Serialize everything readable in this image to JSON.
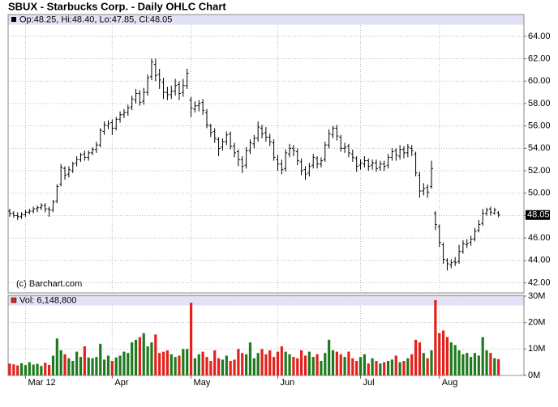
{
  "chart_data": [
    {
      "type": "ohlc",
      "title": "SBUX - Starbucks Corp. - Daily OHLC Chart",
      "header": "Op:48.25, Hi:48.40, Lo:47.85, Cl:48.05",
      "watermark": "(c) Barchart.com",
      "last_label": "48.05",
      "color": "#000000",
      "open": [
        48.4,
        48.2,
        48.0,
        47.9,
        48.1,
        48.3,
        48.4,
        48.6,
        48.7,
        48.9,
        48.6,
        48.5,
        49.3,
        50.8,
        52.2,
        51.7,
        52.0,
        52.7,
        53.0,
        53.5,
        53.2,
        53.6,
        53.9,
        54.3,
        55.5,
        56.0,
        56.3,
        55.8,
        56.6,
        57.0,
        57.2,
        57.7,
        58.3,
        58.9,
        58.2,
        59.0,
        60.4,
        61.5,
        60.6,
        59.9,
        59.0,
        58.8,
        59.1,
        59.7,
        59.0,
        59.6,
        58.3,
        57.5,
        57.8,
        58.1,
        57.2,
        56.0,
        55.5,
        54.8,
        54.1,
        54.6,
        55.3,
        54.2,
        53.7,
        53.0,
        52.5,
        53.8,
        54.4,
        54.9,
        55.8,
        55.4,
        55.0,
        54.5,
        53.0,
        52.6,
        52.2,
        53.5,
        54.0,
        53.7,
        52.8,
        52.1,
        51.8,
        52.5,
        53.1,
        52.6,
        53.0,
        54.3,
        55.2,
        55.8,
        55.0,
        54.0,
        54.2,
        53.5,
        53.1,
        52.5,
        52.6,
        52.9,
        52.5,
        52.7,
        52.3,
        52.6,
        52.5,
        53.2,
        53.8,
        53.3,
        53.9,
        53.6,
        54.0,
        53.5,
        51.6,
        50.2,
        50.5,
        50.6,
        48.2,
        47.0,
        45.4,
        44.0,
        43.6,
        43.9,
        43.9,
        44.8,
        45.4,
        45.6,
        45.9,
        46.7,
        47.3,
        48.2,
        48.6,
        48.2,
        48.25
      ],
      "high": [
        48.6,
        48.4,
        48.3,
        48.3,
        48.5,
        48.6,
        48.8,
        48.9,
        49.1,
        49.1,
        48.8,
        49.4,
        50.8,
        52.6,
        52.4,
        52.4,
        52.8,
        53.3,
        53.6,
        53.8,
        53.8,
        54.1,
        54.6,
        55.8,
        56.4,
        56.5,
        56.6,
        56.8,
        57.3,
        57.5,
        57.9,
        58.7,
        59.3,
        59.2,
        59.4,
        60.6,
        62.0,
        62.0,
        61.1,
        60.3,
        59.5,
        59.6,
        60.2,
        60.0,
        60.2,
        61.1,
        58.6,
        58.2,
        58.3,
        58.4,
        57.5,
        56.2,
        55.8,
        55.0,
        54.9,
        55.5,
        55.5,
        54.5,
        53.9,
        53.3,
        54.1,
        54.8,
        55.2,
        56.4,
        56.1,
        55.9,
        55.3,
        54.8,
        53.4,
        53.0,
        53.9,
        54.4,
        54.3,
        54.0,
        53.1,
        52.4,
        52.7,
        53.5,
        53.3,
        53.2,
        54.6,
        55.7,
        56.0,
        56.1,
        55.2,
        54.5,
        54.4,
        53.9,
        53.3,
        53.0,
        53.3,
        53.1,
        53.0,
        53.0,
        52.9,
        52.9,
        53.5,
        54.0,
        54.0,
        54.3,
        54.2,
        54.4,
        54.3,
        53.7,
        51.9,
        50.9,
        50.8,
        52.9,
        48.4,
        47.2,
        45.6,
        44.2,
        44.1,
        44.3,
        45.4,
        45.8,
        45.9,
        46.2,
        46.9,
        47.6,
        48.6,
        48.7,
        48.8,
        48.7,
        48.4
      ],
      "low": [
        47.9,
        47.8,
        47.6,
        47.7,
        47.9,
        48.1,
        48.2,
        48.3,
        48.5,
        48.3,
        47.9,
        48.3,
        49.1,
        50.6,
        51.2,
        51.4,
        51.8,
        52.4,
        52.8,
        52.9,
        52.9,
        53.4,
        53.6,
        54.1,
        55.2,
        55.7,
        55.2,
        55.6,
        56.3,
        56.7,
        56.9,
        57.4,
        58.0,
        57.8,
        57.9,
        58.7,
        60.1,
        60.0,
        59.3,
        58.4,
        58.3,
        58.4,
        58.7,
        58.3,
        58.6,
        59.3,
        56.8,
        57.2,
        57.3,
        57.0,
        55.8,
        55.0,
        54.5,
        53.3,
        53.8,
        54.3,
        53.9,
        53.2,
        52.4,
        51.8,
        52.2,
        53.5,
        54.0,
        54.6,
        54.9,
        54.6,
        54.2,
        52.9,
        52.0,
        51.7,
        51.9,
        53.2,
        53.3,
        52.5,
        51.6,
        51.2,
        51.5,
        52.2,
        52.2,
        52.3,
        52.8,
        54.0,
        54.9,
        54.7,
        53.7,
        53.6,
        53.2,
        52.8,
        51.9,
        52.1,
        52.3,
        52.0,
        52.1,
        51.9,
        52.0,
        52.0,
        52.2,
        52.9,
        52.9,
        53.0,
        53.1,
        53.2,
        53.3,
        51.5,
        49.6,
        49.8,
        49.6,
        50.4,
        46.7,
        45.2,
        43.7,
        43.1,
        43.3,
        43.5,
        43.7,
        44.6,
        45.1,
        45.3,
        45.7,
        46.5,
        47.1,
        48.0,
        48.0,
        48.1,
        47.85
      ],
      "close": [
        48.2,
        48.0,
        47.9,
        48.1,
        48.3,
        48.4,
        48.6,
        48.7,
        48.9,
        48.6,
        48.5,
        49.2,
        50.6,
        52.3,
        51.6,
        52.1,
        52.6,
        53.0,
        53.4,
        53.2,
        53.6,
        53.9,
        54.3,
        55.6,
        56.1,
        56.2,
        55.8,
        56.6,
        57.0,
        57.2,
        57.6,
        58.4,
        58.9,
        58.1,
        59.0,
        60.3,
        61.7,
        60.5,
        60.1,
        59.0,
        58.8,
        59.1,
        59.6,
        58.9,
        59.6,
        60.7,
        57.6,
        57.8,
        58.0,
        57.4,
        56.1,
        55.4,
        54.9,
        54.0,
        54.6,
        55.2,
        54.2,
        53.6,
        53.0,
        52.4,
        53.8,
        54.5,
        54.9,
        55.9,
        55.3,
        55.0,
        54.6,
        53.2,
        52.6,
        52.1,
        53.6,
        54.0,
        53.8,
        52.9,
        52.0,
        51.7,
        52.4,
        53.2,
        52.6,
        52.9,
        54.3,
        55.3,
        55.8,
        55.1,
        54.0,
        54.1,
        53.6,
        53.2,
        52.4,
        52.7,
        52.9,
        52.4,
        52.7,
        52.2,
        52.6,
        52.4,
        53.2,
        53.7,
        53.4,
        53.9,
        53.6,
        54.1,
        53.8,
        51.8,
        50.2,
        50.4,
        50.1,
        52.2,
        47.2,
        45.6,
        44.1,
        43.7,
        43.8,
        43.8,
        44.8,
        45.5,
        45.5,
        45.9,
        46.6,
        47.2,
        48.2,
        48.5,
        48.3,
        48.5,
        48.05
      ],
      "ylim": [
        41.1,
        65
      ],
      "yticks": [
        {
          "value": 42,
          "label": "42.00"
        },
        {
          "value": 44,
          "label": "44.00"
        },
        {
          "value": 46,
          "label": "46.00"
        },
        {
          "value": 48,
          "label": "48.00"
        },
        {
          "value": 50,
          "label": "50.00"
        },
        {
          "value": 52,
          "label": "52.00"
        },
        {
          "value": 54,
          "label": "54.00"
        },
        {
          "value": 56,
          "label": "56.00"
        },
        {
          "value": 58,
          "label": "58.00"
        },
        {
          "value": 60,
          "label": "60.00"
        },
        {
          "value": 62,
          "label": "62.00"
        },
        {
          "value": 64,
          "label": "64.00"
        }
      ],
      "grid": true
    },
    {
      "type": "bar",
      "header": "Vol: 6,148,800",
      "categories": [
        null,
        null,
        null,
        null,
        "Mar 12",
        null,
        null,
        null,
        null,
        null,
        null,
        null,
        null,
        null,
        null,
        null,
        null,
        null,
        null,
        null,
        null,
        null,
        null,
        null,
        null,
        null,
        "Apr",
        null,
        null,
        null,
        null,
        null,
        null,
        null,
        null,
        null,
        null,
        null,
        null,
        null,
        null,
        null,
        null,
        null,
        null,
        null,
        "May",
        null,
        null,
        null,
        null,
        null,
        null,
        null,
        null,
        null,
        null,
        null,
        null,
        null,
        null,
        null,
        null,
        null,
        null,
        null,
        null,
        null,
        "Jun",
        null,
        null,
        null,
        null,
        null,
        null,
        null,
        null,
        null,
        null,
        null,
        null,
        null,
        null,
        null,
        null,
        null,
        null,
        null,
        null,
        "Jul",
        null,
        null,
        null,
        null,
        null,
        null,
        null,
        null,
        null,
        null,
        null,
        null,
        null,
        null,
        null,
        null,
        null,
        null,
        null,
        "Aug",
        null,
        null,
        null,
        null,
        null,
        null,
        null,
        null,
        null,
        null,
        null,
        null,
        null,
        null,
        null
      ],
      "values": [
        4.5,
        4.2,
        3.8,
        4.6,
        3.9,
        5.0,
        4.1,
        4.4,
        3.6,
        4.8,
        4.0,
        7.5,
        14.0,
        9.5,
        8.0,
        6.5,
        5.5,
        9.0,
        7.0,
        11.0,
        6.8,
        6.5,
        7.0,
        12.0,
        6.0,
        7.5,
        5.5,
        6.8,
        7.5,
        9.0,
        8.5,
        12.5,
        13.5,
        14.5,
        16.0,
        11.0,
        12.5,
        15.5,
        8.5,
        9.0,
        9.5,
        8.0,
        7.0,
        7.5,
        10.0,
        10.0,
        27.5,
        6.5,
        8.0,
        9.0,
        7.0,
        5.5,
        9.5,
        6.5,
        6.0,
        7.5,
        5.5,
        6.0,
        10.0,
        8.5,
        8.0,
        12.5,
        6.5,
        8.5,
        10.0,
        8.0,
        9.5,
        7.0,
        9.0,
        11.0,
        9.0,
        8.0,
        7.0,
        6.5,
        9.5,
        7.5,
        9.0,
        7.0,
        8.0,
        5.5,
        8.5,
        13.5,
        9.5,
        9.0,
        8.0,
        7.0,
        9.0,
        6.5,
        5.5,
        7.0,
        8.0,
        4.5,
        6.5,
        5.5,
        4.5,
        5.0,
        5.5,
        6.0,
        7.5,
        5.0,
        5.5,
        6.5,
        8.0,
        13.5,
        12.5,
        8.5,
        6.5,
        9.5,
        28.5,
        16.0,
        17.0,
        14.5,
        12.5,
        11.5,
        9.5,
        8.0,
        8.5,
        7.0,
        8.5,
        7.5,
        14.5,
        9.5,
        8.5,
        6.5,
        6.1488
      ],
      "up_color": "#1f7a1f",
      "down_color": "#e3211c",
      "ylim": [
        0,
        30
      ],
      "yticks": [
        {
          "value": 0,
          "label": "0M"
        },
        {
          "value": 10,
          "label": "10M"
        },
        {
          "value": 20,
          "label": "20M"
        },
        {
          "value": 30,
          "label": "30M"
        }
      ],
      "grid": true
    }
  ]
}
